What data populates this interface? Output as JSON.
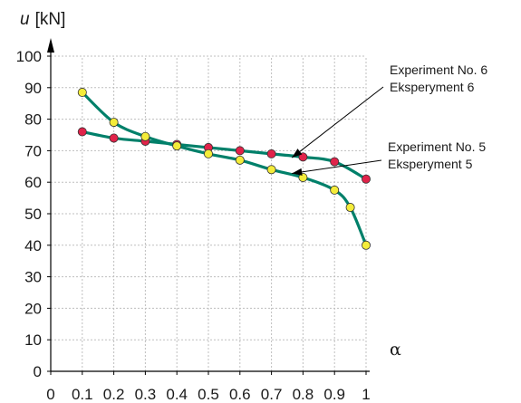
{
  "chart_data": {
    "type": "line",
    "xlabel": "α",
    "ylabel_var": "u",
    "ylabel_unit": "[kN]",
    "xlim": [
      0,
      1
    ],
    "ylim": [
      0,
      100
    ],
    "xticks": [
      "0",
      "0.1",
      "0.2",
      "0.3",
      "0.4",
      "0.5",
      "0.6",
      "0.7",
      "0.8",
      "0.9",
      "1"
    ],
    "yticks": [
      "0",
      "10",
      "20",
      "30",
      "40",
      "50",
      "60",
      "70",
      "80",
      "90",
      "100"
    ],
    "grid": true,
    "series": [
      {
        "key": "exp6",
        "marker_color": "#e0234a",
        "line_color": "#00806a",
        "x": [
          0.1,
          0.2,
          0.3,
          0.4,
          0.5,
          0.6,
          0.7,
          0.8,
          0.9,
          1.0
        ],
        "y": [
          76,
          74,
          73,
          72,
          71,
          70,
          69,
          68,
          66.5,
          61
        ]
      },
      {
        "key": "exp5",
        "marker_color": "#f4ec3a",
        "line_color": "#00806a",
        "x": [
          0.1,
          0.2,
          0.3,
          0.4,
          0.5,
          0.6,
          0.7,
          0.8,
          0.9,
          0.95,
          1.0
        ],
        "y": [
          88.5,
          79,
          74.5,
          71.5,
          69,
          67,
          64,
          61.5,
          57.5,
          52,
          40
        ]
      }
    ],
    "annotations": [
      {
        "line1": "Experiment No. 6",
        "line2": "Eksperyment 6",
        "target_x": 0.765,
        "target_y": 67.8
      },
      {
        "line1": "Experiment No. 5",
        "line2": "Eksperyment 5",
        "target_x": 0.765,
        "target_y": 62.8
      }
    ]
  }
}
